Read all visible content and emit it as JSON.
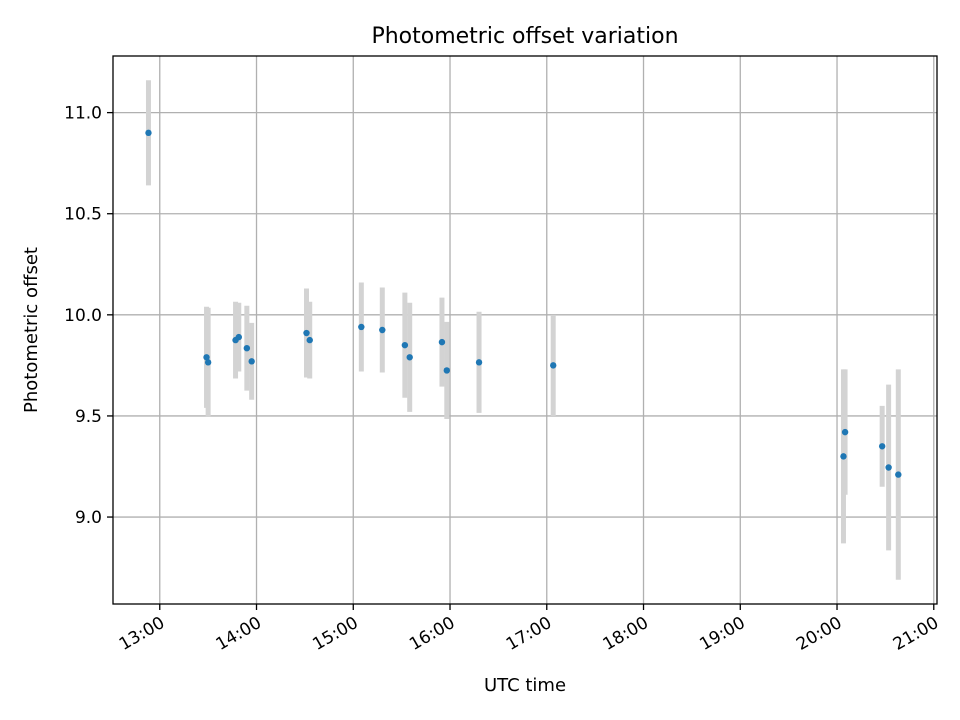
{
  "chart_data": {
    "type": "scatter",
    "title": "Photometric offset variation",
    "xlabel": "UTC time",
    "ylabel": "Photometric offset",
    "x_tick_labels": [
      "13:00",
      "14:00",
      "15:00",
      "16:00",
      "17:00",
      "18:00",
      "19:00",
      "20:00",
      "21:00"
    ],
    "y_tick_labels": [
      "9.0",
      "9.5",
      "10.0",
      "10.5",
      "11.0"
    ],
    "y_ticks": [
      9.0,
      9.5,
      10.0,
      10.5,
      11.0
    ],
    "xlim": [
      "12:31",
      "21:02"
    ],
    "ylim": [
      8.57,
      11.28
    ],
    "grid": true,
    "colors": {
      "points": "#1f77b4",
      "error_bars": "#d3d3d3",
      "grid": "#b0b0b0",
      "axes": "#000000"
    },
    "series": [
      {
        "x": [
          "12:53",
          "13:29",
          "13:30",
          "13:47",
          "13:49",
          "13:54",
          "13:57",
          "14:31",
          "14:33",
          "15:05",
          "15:18",
          "15:32",
          "15:35",
          "15:55",
          "15:58",
          "16:18",
          "17:04",
          "20:04",
          "20:05",
          "20:28",
          "20:32",
          "20:38"
        ],
        "y": [
          10.9,
          9.79,
          9.765,
          9.875,
          9.89,
          9.835,
          9.77,
          9.91,
          9.875,
          9.94,
          9.925,
          9.85,
          9.79,
          9.865,
          9.725,
          9.765,
          9.75,
          9.3,
          9.42,
          9.35,
          9.245,
          9.21
        ],
        "yerr": [
          0.26,
          0.25,
          0.27,
          0.19,
          0.17,
          0.21,
          0.19,
          0.22,
          0.19,
          0.22,
          0.21,
          0.26,
          0.27,
          0.22,
          0.24,
          0.25,
          0.25,
          0.43,
          0.31,
          0.2,
          0.41,
          0.52
        ]
      }
    ]
  }
}
